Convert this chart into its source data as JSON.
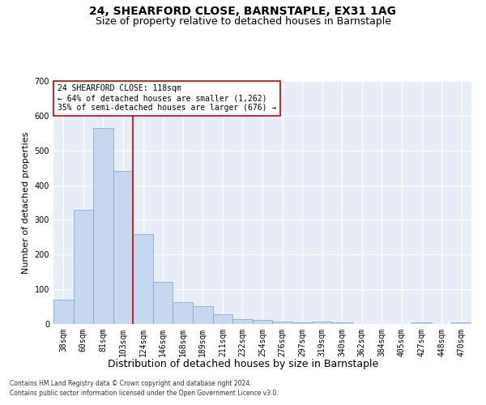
{
  "title": "24, SHEARFORD CLOSE, BARNSTAPLE, EX31 1AG",
  "subtitle": "Size of property relative to detached houses in Barnstaple",
  "xlabel": "Distribution of detached houses by size in Barnstaple",
  "ylabel": "Number of detached properties",
  "categories": [
    "38sqm",
    "60sqm",
    "81sqm",
    "103sqm",
    "124sqm",
    "146sqm",
    "168sqm",
    "189sqm",
    "211sqm",
    "232sqm",
    "254sqm",
    "276sqm",
    "297sqm",
    "319sqm",
    "340sqm",
    "362sqm",
    "384sqm",
    "405sqm",
    "427sqm",
    "448sqm",
    "470sqm"
  ],
  "values": [
    70,
    330,
    565,
    440,
    258,
    122,
    63,
    52,
    28,
    15,
    11,
    6,
    4,
    7,
    4,
    0,
    0,
    0,
    5,
    0,
    4
  ],
  "bar_color": "#c5d8f0",
  "bar_edge_color": "#6fa8d6",
  "vline_color": "#cc0000",
  "ylim": [
    0,
    700
  ],
  "yticks": [
    0,
    100,
    200,
    300,
    400,
    500,
    600,
    700
  ],
  "annotation_text": "24 SHEARFORD CLOSE: 118sqm\n← 64% of detached houses are smaller (1,262)\n35% of semi-detached houses are larger (676) →",
  "annotation_box_color": "#cc0000",
  "footer_line1": "Contains HM Land Registry data © Crown copyright and database right 2024.",
  "footer_line2": "Contains public sector information licensed under the Open Government Licence v3.0.",
  "background_color": "#e8eef7",
  "title_fontsize": 10,
  "subtitle_fontsize": 9,
  "tick_fontsize": 7,
  "ylabel_fontsize": 8,
  "xlabel_fontsize": 9,
  "annotation_fontsize": 7,
  "footer_fontsize": 5.5
}
